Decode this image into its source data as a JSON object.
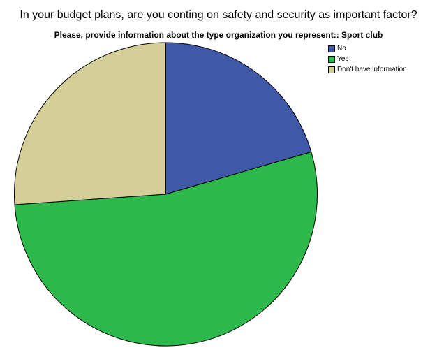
{
  "chart_data": {
    "type": "pie",
    "title": "In your budget plans, are you conting on safety and security as important factor?",
    "subtitle": "Please, provide information about the type organization you represent:: Sport club",
    "categories": [
      "No",
      "Yes",
      "Don't have information"
    ],
    "values": [
      20.5,
      53.4,
      26.1
    ],
    "colors": [
      "#3f58a8",
      "#2db84b",
      "#d4ce98"
    ],
    "start_angle_deg": 0,
    "direction": "clockwise",
    "legend_position": "top-right"
  }
}
